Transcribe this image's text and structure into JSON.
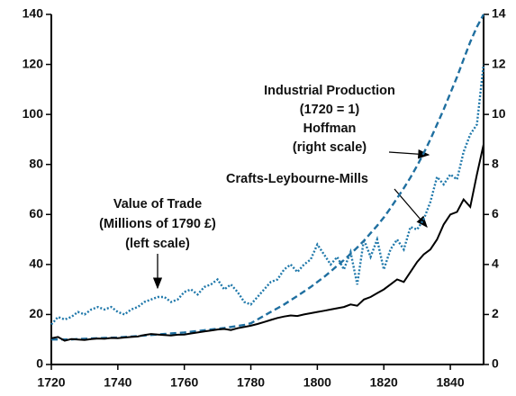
{
  "chart_data": {
    "type": "line",
    "annotations": {
      "hoffman": [
        "Industrial Production",
        "(1720 = 1)",
        "Hoffman",
        "(right scale)"
      ],
      "clm": [
        "Crafts-Leybourne-Mills"
      ],
      "trade": [
        "Value of Trade",
        "(Millions of 1790 £)",
        "(left scale)"
      ]
    },
    "x": [
      1720,
      1722,
      1724,
      1726,
      1728,
      1730,
      1732,
      1734,
      1736,
      1738,
      1740,
      1742,
      1744,
      1746,
      1748,
      1750,
      1752,
      1754,
      1756,
      1758,
      1760,
      1762,
      1764,
      1766,
      1768,
      1770,
      1772,
      1774,
      1776,
      1778,
      1780,
      1782,
      1784,
      1786,
      1788,
      1790,
      1792,
      1794,
      1796,
      1798,
      1800,
      1802,
      1804,
      1806,
      1808,
      1810,
      1812,
      1814,
      1816,
      1818,
      1820,
      1822,
      1824,
      1826,
      1828,
      1830,
      1832,
      1834,
      1836,
      1838,
      1840,
      1842,
      1844,
      1846,
      1848,
      1850
    ],
    "series": [
      {
        "name": "Value of Trade",
        "color": "#1f78aa",
        "style": "dotted",
        "values": [
          16,
          19,
          18,
          19,
          21,
          20,
          22,
          23,
          22,
          23,
          21,
          20,
          22,
          23,
          25,
          26,
          27,
          27,
          25,
          26,
          29,
          30,
          28,
          31,
          32,
          34,
          30,
          32,
          29,
          25,
          24,
          27,
          30,
          33,
          34,
          38,
          40,
          37,
          40,
          42,
          48,
          44,
          40,
          43,
          38,
          45,
          32,
          50,
          43,
          50,
          38,
          46,
          50,
          46,
          55,
          54,
          58,
          65,
          75,
          72,
          76,
          74,
          85,
          92,
          96,
          120
        ]
      },
      {
        "name": "Hoffman",
        "color": "#1f6fa0",
        "style": "dashed",
        "axis": "y2",
        "values": [
          1.0,
          1.0,
          1.0,
          1.0,
          1.02,
          1.03,
          1.04,
          1.05,
          1.06,
          1.07,
          1.08,
          1.1,
          1.12,
          1.14,
          1.16,
          1.18,
          1.2,
          1.22,
          1.24,
          1.26,
          1.28,
          1.31,
          1.34,
          1.37,
          1.4,
          1.43,
          1.46,
          1.5,
          1.54,
          1.58,
          1.65,
          1.8,
          1.95,
          2.1,
          2.25,
          2.4,
          2.57,
          2.74,
          2.92,
          3.1,
          3.3,
          3.5,
          3.72,
          3.95,
          4.18,
          4.42,
          4.68,
          4.95,
          5.25,
          5.55,
          5.88,
          6.25,
          6.65,
          7.05,
          7.48,
          7.95,
          8.45,
          9.0,
          9.6,
          10.2,
          10.85,
          11.5,
          12.2,
          12.9,
          13.5,
          14.0
        ]
      },
      {
        "name": "Crafts-Leybourne-Mills",
        "color": "#000000",
        "style": "solid",
        "axis": "y2",
        "values": [
          1.05,
          1.1,
          0.95,
          1.02,
          1.0,
          0.98,
          1.02,
          1.04,
          1.03,
          1.06,
          1.05,
          1.08,
          1.1,
          1.12,
          1.18,
          1.22,
          1.2,
          1.18,
          1.16,
          1.19,
          1.2,
          1.24,
          1.28,
          1.32,
          1.36,
          1.4,
          1.42,
          1.38,
          1.45,
          1.5,
          1.55,
          1.62,
          1.7,
          1.78,
          1.86,
          1.92,
          1.96,
          1.94,
          2.0,
          2.05,
          2.1,
          2.15,
          2.2,
          2.25,
          2.3,
          2.4,
          2.35,
          2.6,
          2.7,
          2.85,
          3.0,
          3.2,
          3.4,
          3.3,
          3.7,
          4.1,
          4.4,
          4.6,
          5.0,
          5.6,
          6.0,
          6.1,
          6.6,
          6.3,
          7.6,
          8.8
        ]
      }
    ],
    "xlim": [
      1720,
      1850
    ],
    "xticks": [
      1720,
      1740,
      1760,
      1780,
      1800,
      1820,
      1840
    ],
    "ylim": [
      0,
      140
    ],
    "yticks": [
      0,
      20,
      40,
      60,
      80,
      100,
      120,
      140
    ],
    "y2lim": [
      0,
      14
    ],
    "y2ticks": [
      0,
      2,
      4,
      6,
      8,
      10,
      12,
      14
    ]
  }
}
